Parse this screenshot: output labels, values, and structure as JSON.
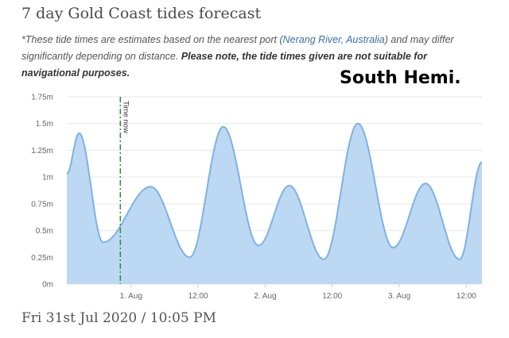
{
  "page": {
    "title": "7 day Gold Coast tides forecast",
    "note_prefix": "*These tide times are estimates based on the nearest port (",
    "port_link": "Nerang River, Australia",
    "note_middle": ") and may differ significantly depending on distance. ",
    "note_bold": "Please note, the tide times given are not suitable for navigational purposes.",
    "annotation": "South Hemi.",
    "footer_date": "Fri 31st Jul 2020 / 10:05 PM"
  },
  "colors": {
    "fill": "#bcd8f3",
    "line": "#7fb2e2",
    "grid": "#e6e6e6",
    "now_line": "#2e8b3c"
  },
  "chart_data": {
    "type": "area",
    "x_unit": "hours since 12:00 on 31 Jul 2020",
    "xlim": [
      12.5,
      72
    ],
    "ylim": [
      0,
      1.75
    ],
    "y_ticks": [
      0,
      0.25,
      0.5,
      0.75,
      1,
      1.25,
      1.5,
      1.75
    ],
    "y_tick_labels": [
      "0m",
      "0.25m",
      "0.5m",
      "0.75m",
      "1m",
      "1.25m",
      "1.5m",
      "1.75m"
    ],
    "x_ticks": [
      {
        "x": 24,
        "label": "1. Aug"
      },
      {
        "x": 36,
        "label": "12:00"
      },
      {
        "x": 48,
        "label": "2. Aug"
      },
      {
        "x": 60,
        "label": "12:00"
      },
      {
        "x": 72,
        "label": "3. Aug"
      },
      {
        "x": 84,
        "label": "12:00"
      }
    ],
    "now": {
      "x": 22.08,
      "label": "Time now"
    },
    "series": [
      {
        "tides": [
          {
            "x": 12.5,
            "y": 1.03
          },
          {
            "x": 14.7,
            "y": 1.41
          },
          {
            "x": 19.0,
            "y": 0.39
          },
          {
            "x": 27.5,
            "y": 0.91
          },
          {
            "x": 34.5,
            "y": 0.25
          },
          {
            "x": 40.5,
            "y": 1.47
          },
          {
            "x": 46.8,
            "y": 0.36
          },
          {
            "x": 52.3,
            "y": 0.92
          },
          {
            "x": 58.5,
            "y": 0.23
          },
          {
            "x": 64.6,
            "y": 1.5
          },
          {
            "x": 70.9,
            "y": 0.34
          },
          {
            "x": 76.7,
            "y": 0.94
          },
          {
            "x": 82.8,
            "y": 0.23
          },
          {
            "x": 86.8,
            "y": 1.14
          }
        ]
      }
    ]
  }
}
